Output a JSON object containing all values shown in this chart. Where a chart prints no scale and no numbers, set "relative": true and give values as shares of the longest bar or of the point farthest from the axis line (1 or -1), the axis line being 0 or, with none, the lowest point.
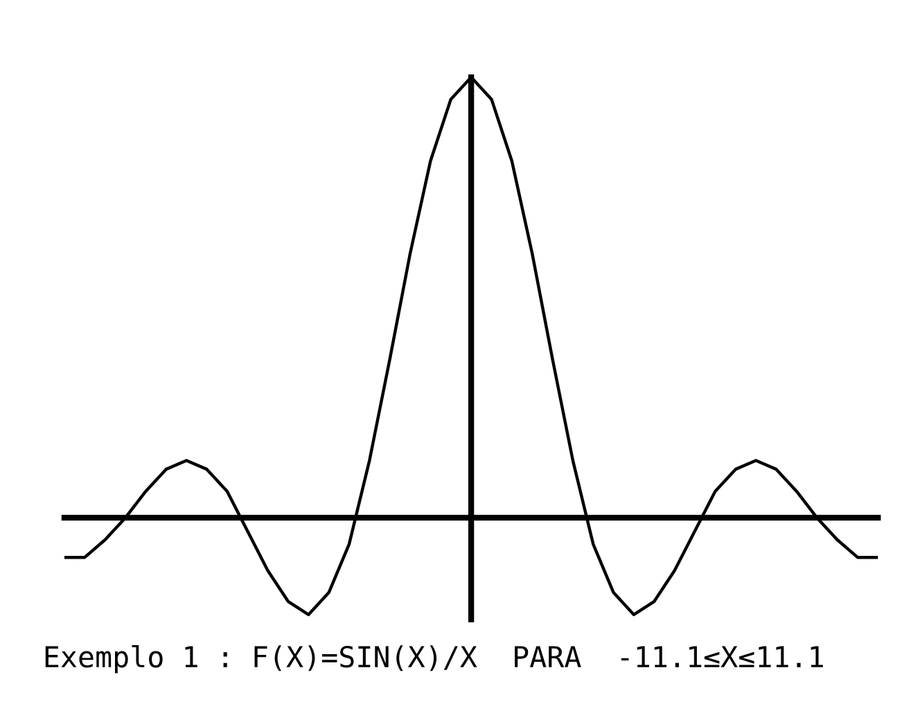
{
  "chart_data": {
    "type": "line",
    "relative": true,
    "categories": [
      null,
      null,
      null,
      null,
      null,
      null,
      null,
      null,
      null,
      null,
      null,
      null,
      null,
      null,
      null,
      null,
      null,
      null,
      null,
      null,
      null,
      null,
      null,
      null,
      null,
      null,
      null,
      null,
      null,
      null,
      null,
      null,
      null,
      null,
      null,
      null,
      null,
      null,
      null,
      null,
      null
    ],
    "series": [
      {
        "color": "#000000",
        "values": [
          -0.09,
          -0.09,
          -0.05,
          0.0,
          0.06,
          0.11,
          0.13,
          0.11,
          0.06,
          -0.03,
          -0.12,
          -0.19,
          -0.22,
          -0.17,
          -0.06,
          0.13,
          0.36,
          0.6,
          0.81,
          0.95,
          1,
          0.95,
          0.81,
          0.6,
          0.36,
          0.13,
          -0.06,
          -0.17,
          -0.22,
          -0.19,
          -0.12,
          -0.03,
          0.06,
          0.11,
          0.13,
          0.11,
          0.06,
          0.0,
          -0.05,
          -0.09,
          -0.09
        ]
      }
    ],
    "annotations": [
      "Exemplo 1 : F(X)=SIN(X)/X  PARA  -11.1≤X≤11.1"
    ]
  }
}
